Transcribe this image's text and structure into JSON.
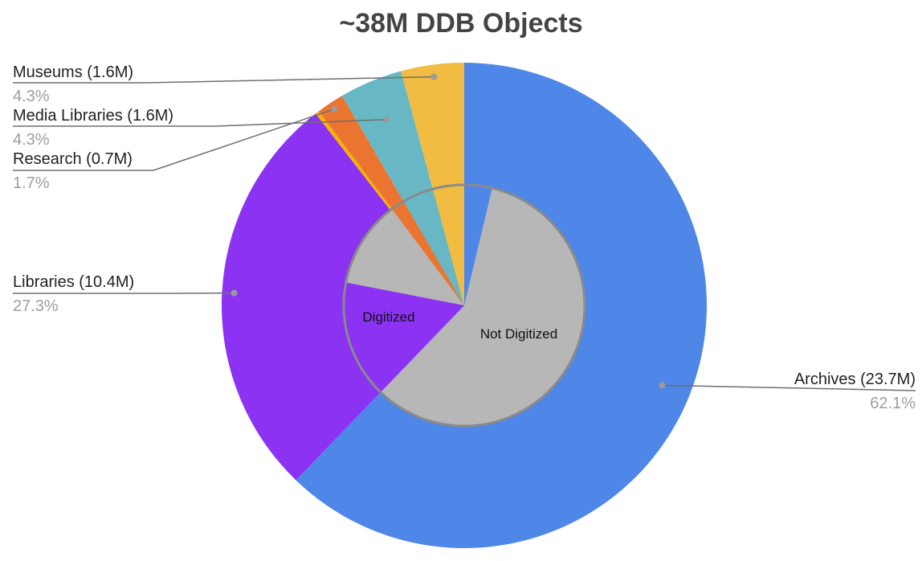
{
  "chart_data": {
    "type": "pie",
    "title": "~38M DDB Objects",
    "colors": {
      "Archives": "#4f87e8",
      "Libraries": "#8b32f3",
      "Research": "#ec7431",
      "Media Libraries": "#67b8c4",
      "Museums": "#f2bb42",
      "other": "#f5b400",
      "not_digitized": "#b7b7b7"
    },
    "outer_ring": [
      {
        "label": "Archives (23.7M)",
        "name": "Archives",
        "value": 23.7,
        "percent": "62.1%"
      },
      {
        "label": "Libraries (10.4M)",
        "name": "Libraries",
        "value": 10.4,
        "percent": "27.3%"
      },
      {
        "label": "",
        "name": "other",
        "value": 0.1,
        "percent": ""
      },
      {
        "label": "Research (0.7M)",
        "name": "Research",
        "value": 0.7,
        "percent": "1.7%"
      },
      {
        "label": "Media Libraries (1.6M)",
        "name": "Media Libraries",
        "value": 1.6,
        "percent": "4.3%"
      },
      {
        "label": "Museums (1.6M)",
        "name": "Museums",
        "value": 1.6,
        "percent": "4.3%"
      }
    ],
    "inner_ring": {
      "labels": [
        "Digitized",
        "Not Digitized"
      ],
      "digitized_share": [
        {
          "name": "Archives",
          "digitized_fraction": 0.06
        },
        {
          "name": "Libraries",
          "digitized_fraction": 0.58
        },
        {
          "name": "other",
          "digitized_fraction": 0.0
        },
        {
          "name": "Research",
          "digitized_fraction": 1.0
        },
        {
          "name": "Media Libraries",
          "digitized_fraction": 1.0
        },
        {
          "name": "Museums",
          "digitized_fraction": 1.0
        }
      ]
    },
    "legend": "labels with leader lines"
  }
}
